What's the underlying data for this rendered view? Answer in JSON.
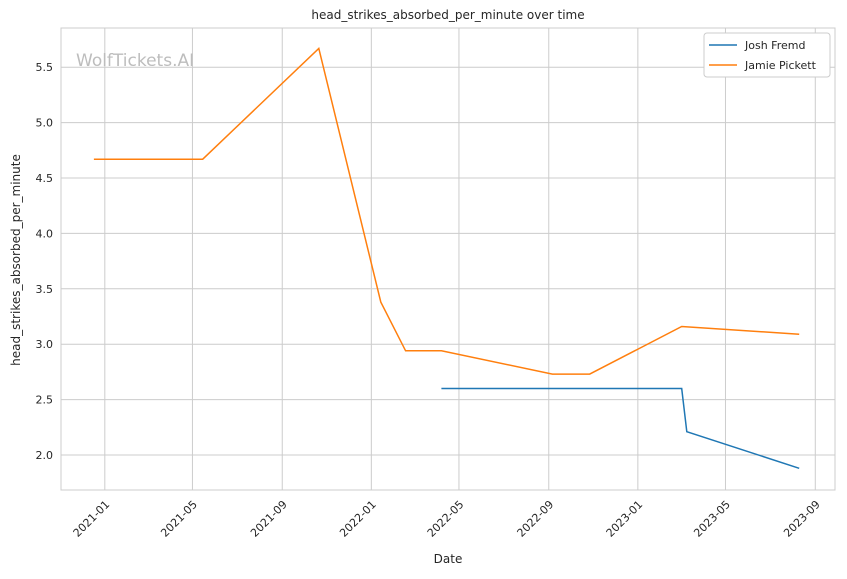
{
  "chart_data": {
    "type": "line",
    "title": "head_strikes_absorbed_per_minute over time",
    "xlabel": "Date",
    "ylabel": "head_strikes_absorbed_per_minute",
    "watermark": "WolfTickets.AI",
    "xlim": [
      "2020-11-02",
      "2023-09-28"
    ],
    "ylim": [
      1.684,
      5.854
    ],
    "grid": true,
    "legend_position": "top-right",
    "x_ticks": [
      "2021-01",
      "2021-05",
      "2021-09",
      "2022-01",
      "2022-05",
      "2022-09",
      "2023-01",
      "2023-05",
      "2023-09"
    ],
    "y_ticks": [
      "2.0",
      "2.5",
      "3.0",
      "3.5",
      "4.0",
      "4.5",
      "5.0",
      "5.5"
    ],
    "series": [
      {
        "name": "Josh Fremd",
        "color": "#1f77b4",
        "x": [
          "2022-04-07",
          "2023-03-02",
          "2023-03-09",
          "2023-08-10"
        ],
        "y": [
          2.6,
          2.6,
          2.21,
          1.88
        ]
      },
      {
        "name": "Jamie Pickett",
        "color": "#ff7f0e",
        "x": [
          "2020-12-17",
          "2021-05-15",
          "2021-10-21",
          "2022-01-14",
          "2022-02-17",
          "2022-04-07",
          "2022-09-06",
          "2022-10-27",
          "2023-03-02",
          "2023-08-10"
        ],
        "y": [
          4.67,
          4.67,
          5.67,
          3.38,
          2.94,
          2.94,
          2.73,
          2.73,
          3.16,
          3.09
        ]
      }
    ]
  }
}
